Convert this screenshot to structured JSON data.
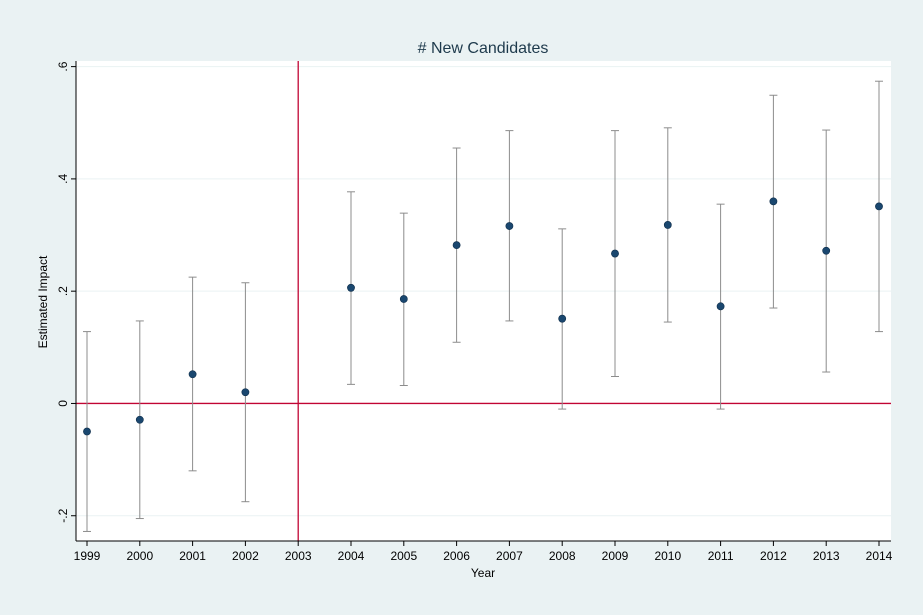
{
  "chart_data": {
    "type": "scatter",
    "title": "# New Candidates",
    "xlabel": "Year",
    "ylabel": "Estimated Impact",
    "xlim": [
      1999,
      2014
    ],
    "ylim": [
      -0.245,
      0.61
    ],
    "x_ticks": [
      {
        "value": 1999,
        "label": "1999"
      },
      {
        "value": 2000,
        "label": "2000"
      },
      {
        "value": 2001,
        "label": "2001"
      },
      {
        "value": 2002,
        "label": "2002"
      },
      {
        "value": 2003,
        "label": "2003"
      },
      {
        "value": 2004,
        "label": "2004"
      },
      {
        "value": 2005,
        "label": "2005"
      },
      {
        "value": 2006,
        "label": "2006"
      },
      {
        "value": 2007,
        "label": "2007"
      },
      {
        "value": 2008,
        "label": "2008"
      },
      {
        "value": 2009,
        "label": "2009"
      },
      {
        "value": 2010,
        "label": "2010"
      },
      {
        "value": 2011,
        "label": "2011"
      },
      {
        "value": 2012,
        "label": "2012"
      },
      {
        "value": 2013,
        "label": "2013"
      },
      {
        "value": 2014,
        "label": "2014"
      }
    ],
    "y_ticks": [
      {
        "value": -0.2,
        "label": "-.2"
      },
      {
        "value": 0,
        "label": "0"
      },
      {
        "value": 0.2,
        "label": ".2"
      },
      {
        "value": 0.4,
        "label": ".4"
      },
      {
        "value": 0.6,
        "label": ".6"
      }
    ],
    "points": [
      {
        "x": 1999,
        "y": -0.05,
        "lo": -0.228,
        "hi": 0.128
      },
      {
        "x": 2000,
        "y": -0.029,
        "lo": -0.205,
        "hi": 0.147
      },
      {
        "x": 2001,
        "y": 0.052,
        "lo": -0.12,
        "hi": 0.225
      },
      {
        "x": 2002,
        "y": 0.02,
        "lo": -0.175,
        "hi": 0.215
      },
      {
        "x": 2004,
        "y": 0.206,
        "lo": 0.034,
        "hi": 0.377
      },
      {
        "x": 2005,
        "y": 0.186,
        "lo": 0.032,
        "hi": 0.339
      },
      {
        "x": 2006,
        "y": 0.282,
        "lo": 0.109,
        "hi": 0.455
      },
      {
        "x": 2007,
        "y": 0.316,
        "lo": 0.147,
        "hi": 0.486
      },
      {
        "x": 2008,
        "y": 0.151,
        "lo": -0.01,
        "hi": 0.311
      },
      {
        "x": 2009,
        "y": 0.267,
        "lo": 0.048,
        "hi": 0.486
      },
      {
        "x": 2010,
        "y": 0.318,
        "lo": 0.145,
        "hi": 0.491
      },
      {
        "x": 2011,
        "y": 0.173,
        "lo": -0.01,
        "hi": 0.355
      },
      {
        "x": 2012,
        "y": 0.36,
        "lo": 0.17,
        "hi": 0.549
      },
      {
        "x": 2013,
        "y": 0.272,
        "lo": 0.056,
        "hi": 0.487
      },
      {
        "x": 2014,
        "y": 0.351,
        "lo": 0.128,
        "hi": 0.574
      }
    ],
    "reference_lines": {
      "vertical_x": 2003,
      "horizontal_y": 0
    },
    "grid": true,
    "legend": "none",
    "colors": {
      "point": "#1a476f",
      "error_bar": "#8c8c8c",
      "reference_line": "#c10534",
      "grid": "#eaf2f3",
      "plot_background": "#ffffff",
      "page_background": "#eaf2f3",
      "title": "#1e3a4c"
    }
  }
}
